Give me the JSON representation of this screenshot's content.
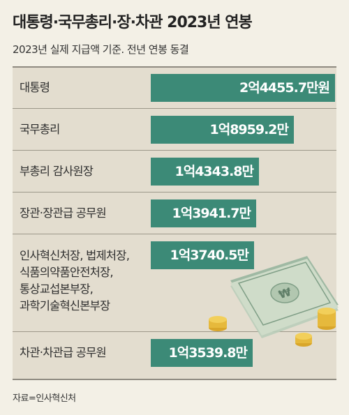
{
  "title": "대통령·국무총리·장·차관 2023년 연봉",
  "subtitle": "2023년 실제 지급액 기준. 전년 연봉 동결",
  "source": "자료=인사혁신처",
  "colors": {
    "bar": "#3c8a77",
    "background": "#f3f0e6",
    "table_bg": "#e3ddcf"
  },
  "illustration": {
    "icon": "won-banknotes-and-coins",
    "symbol": "₩"
  },
  "chart_data": {
    "type": "bar",
    "orientation": "horizontal",
    "unit": "만원",
    "categories": [
      "대통령",
      "국무총리",
      "부총리 감사원장",
      "장관·장관급 공무원",
      "인사혁신처장, 법제처장,\n식품의약품안전처장,\n통상교섭본부장,\n과학기술혁신본부장",
      "차관·차관급 공무원"
    ],
    "values": [
      24455.7,
      18959.2,
      14343.8,
      13941.7,
      13740.5,
      13539.8
    ],
    "data_labels": [
      "2억4455.7만원",
      "1억8959.2만",
      "1억4343.8만",
      "1억3941.7만",
      "1억3740.5만",
      "1억3539.8만"
    ]
  }
}
